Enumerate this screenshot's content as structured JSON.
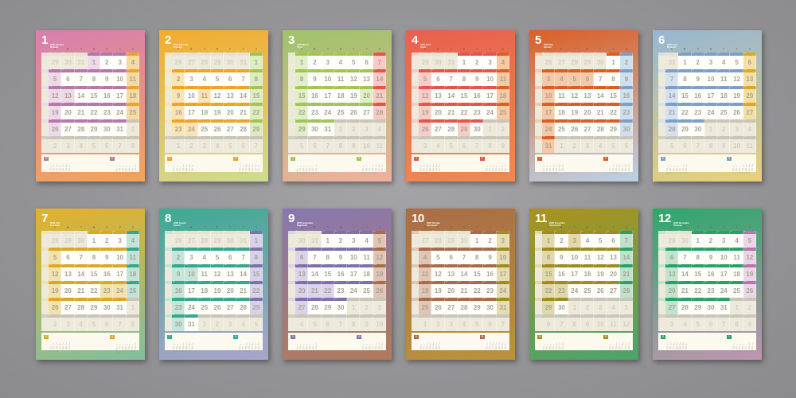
{
  "calendar": {
    "year": 2020,
    "weekday_headers": [
      "S",
      "M",
      "T",
      "W",
      "T",
      "F",
      "S"
    ],
    "strip_mark": "▪",
    "palette": {
      "off_cell": "#edeadb",
      "off_strip_prev": "#e7e2cf",
      "off_strip_next": "#c8c5ba",
      "narrow_strip_off": "#d2cfc4",
      "white_cell": "#fdfdf9",
      "band_bg": "#fcf9ef",
      "background_gray": "#97979a"
    },
    "months": [
      {
        "num": 1,
        "title": "2020 January",
        "subtitle": "Mutsuki",
        "accent": "#b476ac",
        "light": "#edd9e8",
        "sat_accent": "#eca22c",
        "sat_light": "#f7d9a2",
        "grad_top": "#d77fb0",
        "grad_bottom": "#f2a45a",
        "first_dow": 3,
        "days": 31,
        "prev_days": 31,
        "holidays": [
          1,
          13
        ],
        "prev_mini": {
          "label": "12",
          "first_dow": 0,
          "days": 31
        },
        "next_mini": {
          "label": "2",
          "first_dow": 6,
          "days": 29
        }
      },
      {
        "num": 2,
        "title": "2020 February",
        "subtitle": "Kisaragi",
        "accent": "#efa420",
        "light": "#fce3b2",
        "sat_accent": "#a3c455",
        "sat_light": "#ddedbd",
        "grad_top": "#f3ab2e",
        "grad_bottom": "#cfdc92",
        "first_dow": 6,
        "days": 29,
        "prev_days": 31,
        "holidays": [
          11,
          23,
          24
        ],
        "prev_mini": {
          "label": "1",
          "first_dow": 3,
          "days": 31
        },
        "next_mini": {
          "label": "3",
          "first_dow": 0,
          "days": 31
        }
      },
      {
        "num": 3,
        "title": "2020 March",
        "subtitle": "Yayoi",
        "accent": "#a2c455",
        "light": "#e0efc5",
        "sat_accent": "#e4544b",
        "sat_light": "#f8cac4",
        "grad_top": "#9ec46a",
        "grad_bottom": "#f0b09d",
        "first_dow": 0,
        "days": 31,
        "prev_days": 29,
        "holidays": [
          20
        ],
        "prev_mini": {
          "label": "2",
          "first_dow": 6,
          "days": 29
        },
        "next_mini": {
          "label": "4",
          "first_dow": 3,
          "days": 30
        }
      },
      {
        "num": 4,
        "title": "2020 April",
        "subtitle": "Uzuki",
        "accent": "#e4544b",
        "light": "#f8ccc6",
        "sat_accent": "#d95e24",
        "sat_light": "#f5c9a2",
        "grad_top": "#e8614e",
        "grad_bottom": "#ee8a52",
        "first_dow": 3,
        "days": 30,
        "prev_days": 31,
        "holidays": [
          29
        ],
        "prev_mini": {
          "label": "3",
          "first_dow": 0,
          "days": 31
        },
        "next_mini": {
          "label": "5",
          "first_dow": 5,
          "days": 31
        }
      },
      {
        "num": 5,
        "title": "2020 May",
        "subtitle": "Satsuki",
        "accent": "#d95e24",
        "light": "#f4c9a8",
        "sat_accent": "#7e9fc4",
        "sat_light": "#d0dfee",
        "grad_top": "#dc5f25",
        "grad_bottom": "#bcd2e6",
        "first_dow": 5,
        "days": 31,
        "prev_days": 30,
        "holidays": [
          3,
          4,
          5,
          6
        ],
        "prev_mini": {
          "label": "4",
          "first_dow": 3,
          "days": 30
        },
        "next_mini": {
          "label": "6",
          "first_dow": 1,
          "days": 30
        }
      },
      {
        "num": 6,
        "title": "2020 June",
        "subtitle": "Minazuki",
        "accent": "#7e9fc4",
        "light": "#d4e1f0",
        "sat_accent": "#dba826",
        "sat_light": "#f2e0a4",
        "grad_top": "#95b6d2",
        "grad_bottom": "#e9d179",
        "first_dow": 1,
        "days": 30,
        "prev_days": 31,
        "holidays": [],
        "prev_mini": {
          "label": "5",
          "first_dow": 5,
          "days": 31
        },
        "next_mini": {
          "label": "7",
          "first_dow": 3,
          "days": 31
        }
      },
      {
        "num": 7,
        "title": "2020 July",
        "subtitle": "Fumizuki",
        "accent": "#dba826",
        "light": "#f3e2ac",
        "sat_accent": "#35a78d",
        "sat_light": "#c2e3d8",
        "grad_top": "#e3b02c",
        "grad_bottom": "#82c09e",
        "first_dow": 3,
        "days": 31,
        "prev_days": 30,
        "holidays": [
          23,
          24
        ],
        "prev_mini": {
          "label": "6",
          "first_dow": 1,
          "days": 30
        },
        "next_mini": {
          "label": "8",
          "first_dow": 6,
          "days": 31
        }
      },
      {
        "num": 8,
        "title": "2020 August",
        "subtitle": "Hazuki",
        "accent": "#35a78d",
        "light": "#c4e5da",
        "sat_accent": "#7e71aa",
        "sat_light": "#d8d2e9",
        "grad_top": "#3caa90",
        "grad_bottom": "#aba4cc",
        "first_dow": 6,
        "days": 31,
        "prev_days": 31,
        "holidays": [
          10
        ],
        "prev_mini": {
          "label": "7",
          "first_dow": 3,
          "days": 31
        },
        "next_mini": {
          "label": "9",
          "first_dow": 2,
          "days": 30
        }
      },
      {
        "num": 9,
        "title": "2020 September",
        "subtitle": "Nagatsuki",
        "accent": "#7e71aa",
        "light": "#d9d4e9",
        "sat_accent": "#a66b4c",
        "sat_light": "#e1c4b3",
        "grad_top": "#8878b1",
        "grad_bottom": "#b27a5b",
        "first_dow": 2,
        "days": 30,
        "prev_days": 31,
        "holidays": [
          21,
          22
        ],
        "prev_mini": {
          "label": "8",
          "first_dow": 6,
          "days": 31
        },
        "next_mini": {
          "label": "10",
          "first_dow": 4,
          "days": 31
        }
      },
      {
        "num": 10,
        "title": "2020 October",
        "subtitle": "Kannazuki",
        "accent": "#a66b4c",
        "light": "#e1c6b5",
        "sat_accent": "#9e8b22",
        "sat_light": "#e5ddb0",
        "grad_top": "#a96d46",
        "grad_bottom": "#bb923d",
        "first_dow": 4,
        "days": 31,
        "prev_days": 30,
        "holidays": [],
        "prev_mini": {
          "label": "9",
          "first_dow": 2,
          "days": 30
        },
        "next_mini": {
          "label": "11",
          "first_dow": 0,
          "days": 30
        }
      },
      {
        "num": 11,
        "title": "2020 November",
        "subtitle": "Shimotsuki",
        "accent": "#9e8b22",
        "light": "#e2d9a9",
        "sat_accent": "#28a066",
        "sat_light": "#bfe2cd",
        "grad_top": "#ab921f",
        "grad_bottom": "#4aa46c",
        "first_dow": 0,
        "days": 30,
        "prev_days": 31,
        "holidays": [
          3,
          23
        ],
        "prev_mini": {
          "label": "10",
          "first_dow": 4,
          "days": 31
        },
        "next_mini": {
          "label": "12",
          "first_dow": 2,
          "days": 31
        }
      },
      {
        "num": 12,
        "title": "2020 December",
        "subtitle": "Shiwasu",
        "accent": "#28a066",
        "light": "#c1e4cf",
        "sat_accent": "#b476ac",
        "sat_light": "#ead6e6",
        "grad_top": "#2da76b",
        "grad_bottom": "#bf95b1",
        "first_dow": 2,
        "days": 31,
        "prev_days": 30,
        "holidays": [],
        "prev_mini": {
          "label": "11",
          "first_dow": 0,
          "days": 30
        },
        "next_mini": {
          "label": "1",
          "first_dow": 5,
          "days": 31
        }
      }
    ]
  }
}
